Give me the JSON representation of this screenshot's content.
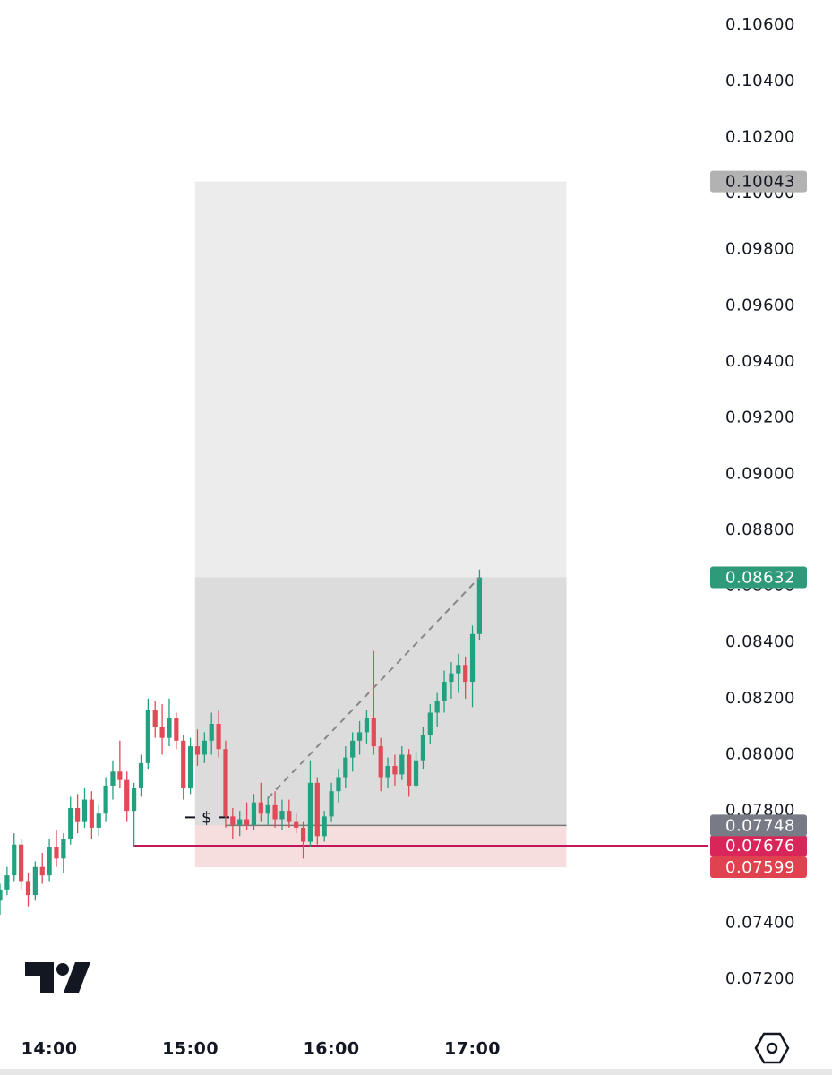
{
  "chart_data": {
    "type": "candlestick",
    "x": [
      819,
      822,
      825,
      828,
      831,
      834,
      837,
      840,
      843,
      846,
      849,
      852,
      855,
      858,
      861,
      864,
      867,
      870,
      873,
      876,
      879,
      882,
      885,
      888,
      891,
      894,
      897,
      900,
      903,
      906,
      909,
      912,
      915,
      918,
      921,
      924,
      927,
      930,
      933,
      936,
      939,
      942,
      945,
      948,
      951,
      954,
      957,
      960,
      963,
      966,
      969,
      972,
      975,
      978,
      981,
      984,
      987,
      990,
      993,
      996,
      999,
      1002,
      1005,
      1008,
      1011,
      1014,
      1017,
      1020,
      1023
    ],
    "open": [
      0.0748,
      0.0752,
      0.0757,
      0.0768,
      0.0755,
      0.075,
      0.076,
      0.0757,
      0.0767,
      0.0763,
      0.077,
      0.0781,
      0.0776,
      0.0784,
      0.0774,
      0.0779,
      0.0789,
      0.0794,
      0.0791,
      0.078,
      0.0788,
      0.0797,
      0.0816,
      0.081,
      0.0806,
      0.0813,
      0.0805,
      0.0788,
      0.0803,
      0.08,
      0.0805,
      0.0811,
      0.0802,
      0.0778,
      0.0775,
      0.0777,
      0.0775,
      0.0783,
      0.0779,
      0.0782,
      0.0777,
      0.078,
      0.0776,
      0.0774,
      0.0769,
      0.079,
      0.0771,
      0.0778,
      0.0787,
      0.0792,
      0.0799,
      0.0805,
      0.0808,
      0.0813,
      0.0803,
      0.0792,
      0.0796,
      0.0793,
      0.08,
      0.0789,
      0.0798,
      0.0807,
      0.0815,
      0.0819,
      0.0826,
      0.0829,
      0.0832,
      0.0826,
      0.0843
    ],
    "high": [
      0.0754,
      0.076,
      0.0772,
      0.077,
      0.0758,
      0.0762,
      0.0765,
      0.077,
      0.0773,
      0.0772,
      0.0785,
      0.0786,
      0.0788,
      0.0787,
      0.0782,
      0.0792,
      0.0798,
      0.0805,
      0.0794,
      0.079,
      0.08,
      0.082,
      0.0819,
      0.0818,
      0.082,
      0.0815,
      0.0807,
      0.0806,
      0.0809,
      0.0808,
      0.0815,
      0.0816,
      0.0805,
      0.0781,
      0.078,
      0.0783,
      0.0786,
      0.079,
      0.0785,
      0.0787,
      0.0784,
      0.0784,
      0.0779,
      0.0776,
      0.0798,
      0.0792,
      0.078,
      0.079,
      0.0795,
      0.0803,
      0.0808,
      0.0812,
      0.0816,
      0.0837,
      0.0806,
      0.0799,
      0.08,
      0.0803,
      0.0802,
      0.0801,
      0.081,
      0.0818,
      0.0822,
      0.083,
      0.0833,
      0.0836,
      0.0835,
      0.0846,
      0.0866
    ],
    "low": [
      0.0743,
      0.075,
      0.0755,
      0.0752,
      0.0746,
      0.0748,
      0.0754,
      0.0755,
      0.076,
      0.0758,
      0.0768,
      0.0772,
      0.0774,
      0.077,
      0.0771,
      0.0776,
      0.0784,
      0.0788,
      0.0776,
      0.0767,
      0.0785,
      0.0795,
      0.0806,
      0.08,
      0.0803,
      0.0802,
      0.0784,
      0.0786,
      0.0796,
      0.0797,
      0.08,
      0.0799,
      0.0774,
      0.077,
      0.0771,
      0.0773,
      0.0773,
      0.0776,
      0.0775,
      0.0774,
      0.0773,
      0.0774,
      0.0772,
      0.0763,
      0.0767,
      0.0768,
      0.0769,
      0.0776,
      0.0783,
      0.0788,
      0.0794,
      0.08,
      0.0804,
      0.08,
      0.0787,
      0.0788,
      0.0789,
      0.0791,
      0.0785,
      0.0788,
      0.0795,
      0.0804,
      0.081,
      0.0815,
      0.082,
      0.0822,
      0.082,
      0.0817,
      0.0841
    ],
    "close": [
      0.0752,
      0.0757,
      0.0768,
      0.0755,
      0.075,
      0.076,
      0.0757,
      0.0767,
      0.0763,
      0.077,
      0.0781,
      0.0776,
      0.0784,
      0.0774,
      0.0779,
      0.0789,
      0.0794,
      0.0791,
      0.078,
      0.0788,
      0.0797,
      0.0816,
      0.081,
      0.0806,
      0.0813,
      0.0805,
      0.0788,
      0.0803,
      0.08,
      0.0805,
      0.0811,
      0.0802,
      0.0778,
      0.0775,
      0.0777,
      0.0775,
      0.0783,
      0.0779,
      0.0782,
      0.0777,
      0.078,
      0.0776,
      0.0774,
      0.0769,
      0.079,
      0.0771,
      0.0778,
      0.0787,
      0.0792,
      0.0799,
      0.0805,
      0.0808,
      0.0813,
      0.0803,
      0.0792,
      0.0796,
      0.0793,
      0.08,
      0.0789,
      0.0798,
      0.0807,
      0.0815,
      0.0819,
      0.0826,
      0.0829,
      0.0832,
      0.0826,
      0.0843,
      0.08632
    ],
    "up_color": "#22a07f",
    "down_color": "#e04b57",
    "xlim": [
      819,
      1120
    ],
    "xticks": [
      {
        "value": 840,
        "label": "14:00"
      },
      {
        "value": 900,
        "label": "15:00"
      },
      {
        "value": 960,
        "label": "16:00"
      },
      {
        "value": 1020,
        "label": "17:00"
      }
    ],
    "ylim": [
      0.0705,
      0.1069
    ],
    "yticks": [
      {
        "value": 0.072,
        "label": "0.07200"
      },
      {
        "value": 0.074,
        "label": "0.07400"
      },
      {
        "value": 0.076,
        "label": "0.07600"
      },
      {
        "value": 0.078,
        "label": "0.07800"
      },
      {
        "value": 0.08,
        "label": "0.08000"
      },
      {
        "value": 0.082,
        "label": "0.08200"
      },
      {
        "value": 0.084,
        "label": "0.08400"
      },
      {
        "value": 0.086,
        "label": "0.08600"
      },
      {
        "value": 0.088,
        "label": "0.08800"
      },
      {
        "value": 0.09,
        "label": "0.09000"
      },
      {
        "value": 0.092,
        "label": "0.09200"
      },
      {
        "value": 0.094,
        "label": "0.09400"
      },
      {
        "value": 0.096,
        "label": "0.09600"
      },
      {
        "value": 0.098,
        "label": "0.09800"
      },
      {
        "value": 0.1,
        "label": "0.10000"
      },
      {
        "value": 0.102,
        "label": "0.10200"
      },
      {
        "value": 0.104,
        "label": "0.10400"
      },
      {
        "value": 0.106,
        "label": "0.10600"
      }
    ],
    "grid": false,
    "position": {
      "entry": 0.07748,
      "target": 0.10043,
      "stop": 0.07599,
      "start": 902,
      "end": 1060
    },
    "alert_level": 0.07676,
    "alert_start": 876,
    "annotation": "$"
  }
}
